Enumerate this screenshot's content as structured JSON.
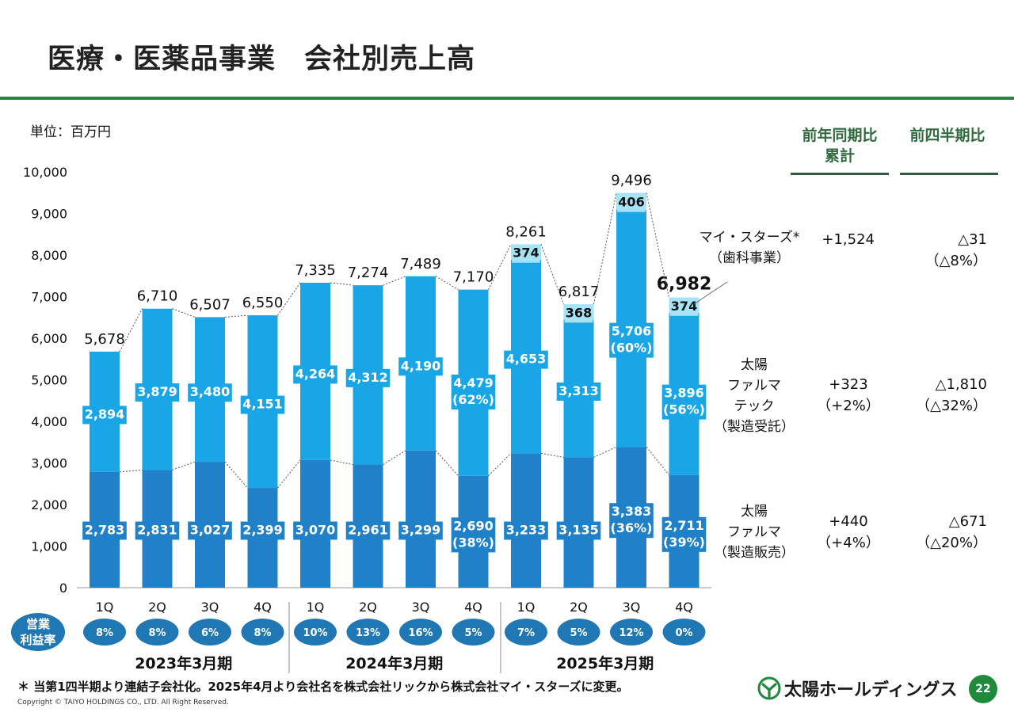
{
  "page_title": "医療・医薬品事業　会社別売上高",
  "unit_label": "単位：百万円",
  "columns": {
    "yoy": "前年同期比\n累計",
    "qoq": "前四半期比"
  },
  "segments": [
    {
      "name": "マイ・スターズ*\n（歯科事業）",
      "yoy": "+1,524",
      "qoq": "△31\n（△8%）"
    },
    {
      "name": "太陽\nファルマ\nテック\n（製造受託）",
      "yoy": "+323\n（+2%）",
      "qoq": "△1,810\n（△32%）"
    },
    {
      "name": "太陽\nファルマ\n（製造販売）",
      "yoy": "+440\n（+4%）",
      "qoq": "△671\n（△20%）"
    }
  ],
  "op_margin_label": "営業\n利益率",
  "footnote": "＊ 当第1四半期より連結子会社化。2025年4月より会社名を株式会社リックから株式会社マイ・スターズに変更。",
  "copyright": "Copyright © TAIYO HOLDINGS CO., LTD.  All Right Reserved.",
  "logo_text": "太陽ホールディングス",
  "page_number": "22",
  "colors": {
    "bottom": "#2080c8",
    "middle": "#1aa6e6",
    "top": "#a7e3f7",
    "accent": "#1f8a3b",
    "pill": "#1f78b4"
  },
  "chart_data": {
    "type": "bar",
    "stacked": true,
    "ylim": [
      0,
      10000
    ],
    "yticks": [
      "0",
      "1,000",
      "2,000",
      "3,000",
      "4,000",
      "5,000",
      "6,000",
      "7,000",
      "8,000",
      "9,000",
      "10,000"
    ],
    "categories": [
      "1Q",
      "2Q",
      "3Q",
      "4Q",
      "1Q",
      "2Q",
      "3Q",
      "4Q",
      "1Q",
      "2Q",
      "3Q",
      "4Q"
    ],
    "periods": [
      "2023年3月期",
      "2024年3月期",
      "2025年3月期"
    ],
    "series": [
      {
        "name": "太陽ファルマ（製造販売）",
        "values": [
          2783,
          2831,
          3027,
          2399,
          3070,
          2961,
          3299,
          2690,
          3233,
          3135,
          3383,
          2711
        ],
        "labels": [
          "2,783",
          "2,831",
          "3,027",
          "2,399",
          "3,070",
          "2,961",
          "3,299",
          "2,690\n(38%)",
          "3,233",
          "3,135",
          "3,383\n(36%)",
          "2,711\n(39%)"
        ]
      },
      {
        "name": "太陽ファルマテック（製造受託）",
        "values": [
          2894,
          3879,
          3480,
          4151,
          4264,
          4312,
          4190,
          4479,
          4653,
          3313,
          5706,
          3896
        ],
        "labels": [
          "2,894",
          "3,879",
          "3,480",
          "4,151",
          "4,264",
          "4,312",
          "4,190",
          "4,479\n(62%)",
          "4,653",
          "3,313",
          "5,706\n(60%)",
          "3,896\n(56%)"
        ]
      },
      {
        "name": "マイ・スターズ（歯科事業）",
        "values": [
          0,
          0,
          0,
          0,
          0,
          0,
          0,
          0,
          374,
          368,
          406,
          374
        ],
        "labels": [
          "",
          "",
          "",
          "",
          "",
          "",
          "",
          "",
          "374",
          "368",
          "406",
          "374"
        ]
      }
    ],
    "totals": [
      5678,
      6710,
      6507,
      6550,
      7335,
      7274,
      7489,
      7170,
      8261,
      6817,
      9496,
      6982
    ],
    "total_labels": [
      "5,678",
      "6,710",
      "6,507",
      "6,550",
      "7,335",
      "7,274",
      "7,489",
      "7,170",
      "8,261",
      "6,817",
      "9,496",
      "6,982"
    ],
    "op_margin": [
      "8%",
      "8%",
      "6%",
      "8%",
      "10%",
      "13%",
      "16%",
      "5%",
      "7%",
      "5%",
      "12%",
      "0%"
    ]
  }
}
